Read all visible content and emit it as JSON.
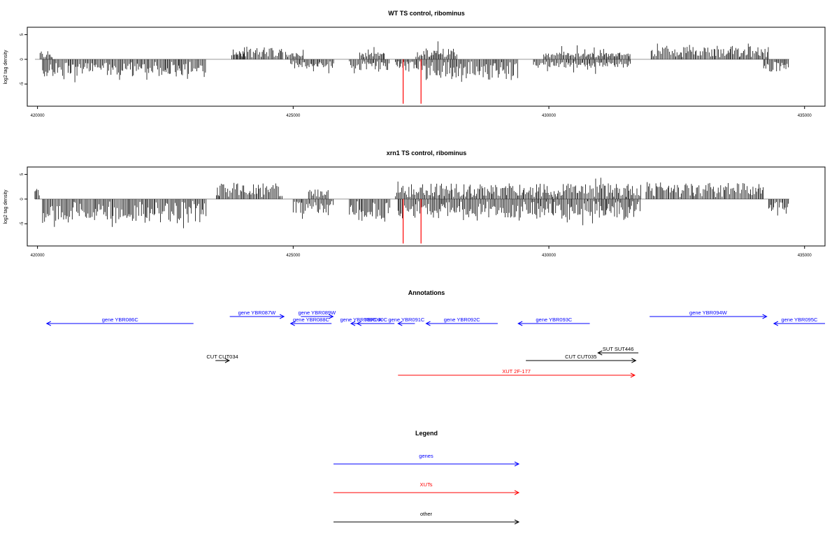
{
  "chart_data": [
    {
      "type": "bar",
      "title": "WT TS control, ribominus",
      "ylabel": "log2 tag density",
      "xlim": [
        419800,
        435400
      ],
      "ylim": [
        -9.5,
        6.5
      ],
      "x_ticks": [
        420000,
        425000,
        430000,
        435000
      ],
      "y_ticks": [
        -5,
        0,
        5
      ],
      "baseline": 0,
      "grid": false,
      "highlight_color": "#ff0000",
      "highlight_lines": [
        {
          "x": 427150,
          "y": -9
        },
        {
          "x": 427500,
          "y": -9
        }
      ],
      "segments": [
        {
          "start": 420050,
          "end": 420300,
          "sign": 1,
          "amp": 1.3
        },
        {
          "start": 420100,
          "end": 423300,
          "sign": -1,
          "amp": 3.2
        },
        {
          "start": 423800,
          "end": 424050,
          "sign": 1,
          "amp": 1.0
        },
        {
          "start": 423900,
          "end": 424800,
          "sign": 1,
          "amp": 2.2
        },
        {
          "start": 424850,
          "end": 425200,
          "sign": 1,
          "amp": 1.2
        },
        {
          "start": 424950,
          "end": 425800,
          "sign": -1,
          "amp": 1.6
        },
        {
          "start": 426100,
          "end": 426900,
          "sign": -1,
          "amp": 1.8
        },
        {
          "start": 426300,
          "end": 426800,
          "sign": 1,
          "amp": 1.0
        },
        {
          "start": 427000,
          "end": 427600,
          "sign": -1,
          "amp": 1.4
        },
        {
          "start": 427400,
          "end": 428200,
          "sign": 1,
          "amp": 1.8
        },
        {
          "start": 427600,
          "end": 429400,
          "sign": -1,
          "amp": 3.8
        },
        {
          "start": 429700,
          "end": 431600,
          "sign": -1,
          "amp": 1.3
        },
        {
          "start": 429900,
          "end": 431600,
          "sign": 1,
          "amp": 1.0
        },
        {
          "start": 432000,
          "end": 434300,
          "sign": 1,
          "amp": 2.2
        },
        {
          "start": 434200,
          "end": 434700,
          "sign": -1,
          "amp": 2.2
        }
      ]
    },
    {
      "type": "bar",
      "title": "xrn1 TS control, ribominus",
      "ylabel": "log2 tag density",
      "xlim": [
        419800,
        435400
      ],
      "ylim": [
        -9.5,
        6.5
      ],
      "x_ticks": [
        420000,
        425000,
        430000,
        435000
      ],
      "y_ticks": [
        -5,
        0,
        5
      ],
      "baseline": 0,
      "grid": false,
      "highlight_color": "#ff0000",
      "highlight_lines": [
        {
          "x": 427150,
          "y": -9
        },
        {
          "x": 427500,
          "y": -9
        }
      ],
      "segments": [
        {
          "start": 419950,
          "end": 420050,
          "sign": 1,
          "amp": 2.3
        },
        {
          "start": 420100,
          "end": 423300,
          "sign": -1,
          "amp": 4.5
        },
        {
          "start": 423500,
          "end": 424800,
          "sign": 1,
          "amp": 2.8
        },
        {
          "start": 425000,
          "end": 425800,
          "sign": -1,
          "amp": 2.6
        },
        {
          "start": 425300,
          "end": 425700,
          "sign": 1,
          "amp": 1.5
        },
        {
          "start": 426100,
          "end": 426900,
          "sign": -1,
          "amp": 4.0
        },
        {
          "start": 427000,
          "end": 431800,
          "sign": 1,
          "amp": 2.8
        },
        {
          "start": 427050,
          "end": 431800,
          "sign": -1,
          "amp": 3.6
        },
        {
          "start": 431900,
          "end": 434200,
          "sign": 1,
          "amp": 3.0
        },
        {
          "start": 434300,
          "end": 434700,
          "sign": -1,
          "amp": 2.0
        }
      ]
    }
  ],
  "annotations": {
    "title": "Annotations",
    "xlim": [
      419800,
      435400
    ],
    "colors": {
      "genes": "#0000ff",
      "xuts": "#ff0000",
      "other": "#000000"
    },
    "features": [
      {
        "label": "gene YBR086C",
        "start": 420180,
        "end": 423050,
        "dir": "left",
        "row": 2,
        "kind": "genes"
      },
      {
        "label": "gene YBR087W",
        "start": 423760,
        "end": 424820,
        "dir": "right",
        "row": 1,
        "kind": "genes"
      },
      {
        "label": "gene YBR088C",
        "start": 424950,
        "end": 425750,
        "dir": "left",
        "row": 2,
        "kind": "genes"
      },
      {
        "label": "gene YBR089W",
        "start": 425150,
        "end": 425780,
        "dir": "right",
        "row": 1,
        "kind": "genes"
      },
      {
        "label": "gene YBR089C-A",
        "start": 426130,
        "end": 426520,
        "dir": "left",
        "row": 2,
        "kind": "genes"
      },
      {
        "label": "YBR090C",
        "start": 426250,
        "end": 426980,
        "dir": "left",
        "row": 2,
        "kind": "genes"
      },
      {
        "label": "gene YBR091C",
        "start": 427050,
        "end": 427380,
        "dir": "left",
        "row": 2,
        "kind": "genes"
      },
      {
        "label": "gene YBR092C",
        "start": 427600,
        "end": 429000,
        "dir": "left",
        "row": 2,
        "kind": "genes"
      },
      {
        "label": "gene YBR093C",
        "start": 429400,
        "end": 430800,
        "dir": "left",
        "row": 2,
        "kind": "genes"
      },
      {
        "label": "gene YBR094W",
        "start": 431970,
        "end": 434260,
        "dir": "right",
        "row": 1,
        "kind": "genes"
      },
      {
        "label": "gene YBR095C",
        "start": 434400,
        "end": 435400,
        "dir": "left",
        "row": 2,
        "kind": "genes"
      },
      {
        "label": "SUT SUT446",
        "start": 430960,
        "end": 431750,
        "dir": "left",
        "row": 3,
        "kind": "other"
      },
      {
        "label": "CUT CUT034",
        "start": 423480,
        "end": 423750,
        "dir": "right",
        "row": 4,
        "kind": "other"
      },
      {
        "label": "CUT CUT035",
        "start": 429550,
        "end": 431700,
        "dir": "right",
        "row": 4,
        "kind": "other"
      },
      {
        "label": "XUT 2F-177",
        "start": 427050,
        "end": 431680,
        "dir": "right",
        "row": 5,
        "kind": "xuts"
      }
    ]
  },
  "legend": {
    "title": "Legend",
    "items": [
      {
        "label": "genes",
        "color": "#0000ff"
      },
      {
        "label": "XUTs",
        "color": "#ff0000"
      },
      {
        "label": "other",
        "color": "#000000"
      }
    ]
  }
}
